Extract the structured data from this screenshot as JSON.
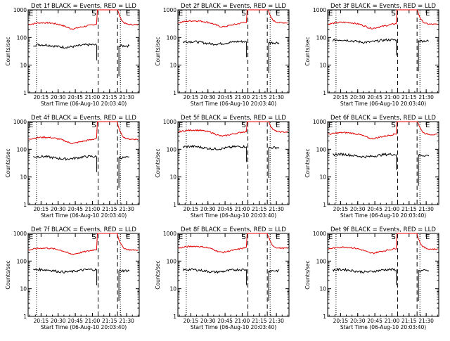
{
  "figure": {
    "background": "#ffffff",
    "colors": {
      "events": "#000000",
      "lld": "#e00000",
      "axis": "#000000"
    }
  },
  "chart_data": [
    {
      "type": "line",
      "title": "Det 1f BLACK = Events, RED = LLD",
      "xlabel": "Start Time (06-Aug-10 20:03:40)",
      "ylabel": "Counts/sec",
      "yscale": "log",
      "ylim": [
        1,
        1000
      ],
      "ytick_labels": [
        "1",
        "10",
        "100",
        "1000"
      ],
      "xtick_labels": [
        "20:15",
        "20:30",
        "20:45",
        "21:00",
        "21:15",
        "21:30"
      ],
      "markers": [
        "E",
        "S",
        "E"
      ],
      "lld_level": 290,
      "events_level": 50,
      "lld_dip_start": "20:35",
      "lld_dip_end": "20:48",
      "events_gap": "21:00"
    },
    {
      "type": "line",
      "title": "Det 2f BLACK = Events, RED = LLD",
      "xlabel": "Start Time (06-Aug-10 20:03:40)",
      "ylabel": "Counts/sec",
      "yscale": "log",
      "ylim": [
        1,
        1000
      ],
      "ytick_labels": [
        "1",
        "10",
        "100",
        "1000"
      ],
      "xtick_labels": [
        "20:15",
        "20:30",
        "20:45",
        "21:00",
        "21:15",
        "21:30"
      ],
      "markers": [
        "E",
        "S",
        "E"
      ],
      "lld_level": 340,
      "events_level": 65,
      "lld_dip_start": "20:35",
      "lld_dip_end": "20:48",
      "events_gap": "21:00"
    },
    {
      "type": "line",
      "title": "Det 3f BLACK = Events, RED = LLD",
      "xlabel": "Start Time (06-Aug-10 20:03:40)",
      "ylabel": "Counts/sec",
      "yscale": "log",
      "ylim": [
        1,
        1000
      ],
      "ytick_labels": [
        "1",
        "10",
        "100",
        "1000"
      ],
      "xtick_labels": [
        "20:15",
        "20:30",
        "20:45",
        "21:00",
        "21:15",
        "21:30"
      ],
      "markers": [
        "E",
        "S",
        "E"
      ],
      "lld_level": 300,
      "events_level": 75,
      "lld_dip_start": "20:35",
      "lld_dip_end": "20:48",
      "events_gap": "21:00"
    },
    {
      "type": "line",
      "title": "Det 4f BLACK = Events, RED = LLD",
      "xlabel": "Start Time (06-Aug-10 20:03:40)",
      "ylabel": "Counts/sec",
      "yscale": "log",
      "ylim": [
        1,
        1000
      ],
      "ytick_labels": [
        "1",
        "10",
        "100",
        "1000"
      ],
      "xtick_labels": [
        "20:15",
        "20:30",
        "20:45",
        "21:00",
        "21:15",
        "21:30"
      ],
      "markers": [
        "E",
        "S",
        "E"
      ],
      "lld_level": 230,
      "events_level": 50,
      "lld_dip_start": "20:35",
      "lld_dip_end": "20:48",
      "events_gap": "21:00"
    },
    {
      "type": "line",
      "title": "Det 5f BLACK = Events, RED = LLD",
      "xlabel": "Start Time (06-Aug-10 20:03:40)",
      "ylabel": "Counts/sec",
      "yscale": "log",
      "ylim": [
        1,
        1000
      ],
      "ytick_labels": [
        "1",
        "10",
        "100",
        "1000"
      ],
      "xtick_labels": [
        "20:15",
        "20:30",
        "20:45",
        "21:00",
        "21:15",
        "21:30"
      ],
      "markers": [
        "E",
        "S",
        "E"
      ],
      "lld_level": 420,
      "events_level": 115,
      "lld_dip_start": "20:35",
      "lld_dip_end": "20:48",
      "events_gap": "21:00"
    },
    {
      "type": "line",
      "title": "Det 6f BLACK = Events, RED = LLD",
      "xlabel": "Start Time (06-Aug-10 20:03:40)",
      "ylabel": "Counts/sec",
      "yscale": "log",
      "ylim": [
        1,
        1000
      ],
      "ytick_labels": [
        "1",
        "10",
        "100",
        "1000"
      ],
      "xtick_labels": [
        "20:15",
        "20:30",
        "20:45",
        "21:00",
        "21:15",
        "21:30"
      ],
      "markers": [
        "E",
        "S",
        "E"
      ],
      "lld_level": 340,
      "events_level": 60,
      "lld_dip_start": "20:35",
      "lld_dip_end": "20:48",
      "events_gap": "21:00"
    },
    {
      "type": "line",
      "title": "Det 7f BLACK = Events, RED = LLD",
      "xlabel": "Start Time (06-Aug-10 20:03:40)",
      "ylabel": "Counts/sec",
      "yscale": "log",
      "ylim": [
        1,
        1000
      ],
      "ytick_labels": [
        "1",
        "10",
        "100",
        "1000"
      ],
      "xtick_labels": [
        "20:15",
        "20:30",
        "20:45",
        "21:00",
        "21:15",
        "21:30"
      ],
      "markers": [
        "E",
        "S",
        "E"
      ],
      "lld_level": 250,
      "events_level": 45,
      "lld_dip_start": "20:35",
      "lld_dip_end": "20:48",
      "events_gap": "21:00"
    },
    {
      "type": "line",
      "title": "Det 8f BLACK = Events, RED = LLD",
      "xlabel": "Start Time (06-Aug-10 20:03:40)",
      "ylabel": "Counts/sec",
      "yscale": "log",
      "ylim": [
        1,
        1000
      ],
      "ytick_labels": [
        "1",
        "10",
        "100",
        "1000"
      ],
      "xtick_labels": [
        "20:15",
        "20:30",
        "20:45",
        "21:00",
        "21:15",
        "21:30"
      ],
      "markers": [
        "E",
        "S",
        "E"
      ],
      "lld_level": 290,
      "events_level": 45,
      "lld_dip_start": "20:35",
      "lld_dip_end": "20:48",
      "events_gap": "21:00"
    },
    {
      "type": "line",
      "title": "Det 9f BLACK = Events, RED = LLD",
      "xlabel": "Start Time (06-Aug-10 20:03:40)",
      "ylabel": "Counts/sec",
      "yscale": "log",
      "ylim": [
        1,
        1000
      ],
      "ytick_labels": [
        "1",
        "10",
        "100",
        "1000"
      ],
      "xtick_labels": [
        "20:15",
        "20:30",
        "20:45",
        "21:00",
        "21:15",
        "21:30"
      ],
      "markers": [
        "E",
        "S",
        "E"
      ],
      "lld_level": 270,
      "events_level": 45,
      "lld_dip_start": "20:35",
      "lld_dip_end": "20:48",
      "events_gap": "21:00"
    }
  ]
}
